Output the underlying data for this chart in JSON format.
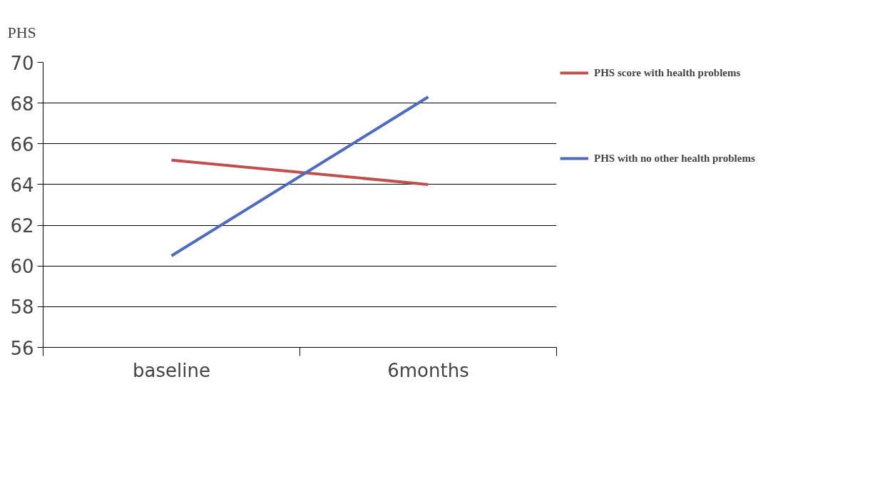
{
  "chart_data": {
    "type": "line",
    "ylabel": "PHS",
    "categories": [
      "baseline",
      "6months"
    ],
    "series": [
      {
        "name": "PHS score with health problems",
        "color": "#c0504d",
        "values": [
          65.2,
          64.0
        ]
      },
      {
        "name": "PHS with no other health problems",
        "color": "#4f6bbd",
        "values": [
          60.5,
          68.3
        ]
      }
    ],
    "ylim": [
      56,
      70
    ],
    "yticks": [
      56,
      58,
      60,
      62,
      64,
      66,
      68,
      70
    ],
    "grid": "y",
    "legend": "right",
    "marker": "none",
    "line_style": "solid"
  }
}
